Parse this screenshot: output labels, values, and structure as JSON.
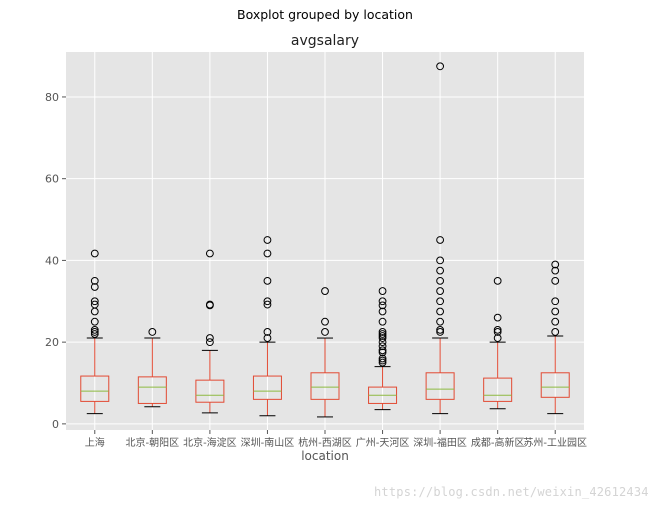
{
  "suptitle": "Boxplot grouped by location",
  "watermark": "https://blog.csdn.net/weixin_42612434",
  "chart_data": {
    "type": "box",
    "title": "avgsalary",
    "xlabel": "location",
    "ylabel": "",
    "ylim": [
      -1.5,
      91
    ],
    "yticks": [
      0,
      20,
      40,
      60,
      80
    ],
    "grid": true,
    "style": "ggplot",
    "colors": {
      "background": "#e5e5e5",
      "grid": "#ffffff",
      "box": "#e24a33",
      "median": "#8eba42",
      "text": "#555555"
    },
    "categories": [
      "上海",
      "北京-朝阳区",
      "北京-海淀区",
      "深圳-南山区",
      "杭州-西湖区",
      "广州-天河区",
      "深圳-福田区",
      "成都-高新区",
      "苏州-工业园区"
    ],
    "boxes": [
      {
        "whislo": 2.5,
        "q1": 5.5,
        "med": 8,
        "q3": 11.7,
        "whishi": 21,
        "fliers": [
          22,
          22.5,
          23,
          25,
          27.5,
          29.2,
          30,
          33.5,
          35,
          41.7
        ]
      },
      {
        "whislo": 4.2,
        "q1": 5,
        "med": 9,
        "q3": 11.5,
        "whishi": 21,
        "fliers": [
          22.5
        ]
      },
      {
        "whislo": 2.7,
        "q1": 5.3,
        "med": 7,
        "q3": 10.7,
        "whishi": 18,
        "fliers": [
          20,
          21,
          29,
          29.2,
          41.7
        ]
      },
      {
        "whislo": 2,
        "q1": 6,
        "med": 8,
        "q3": 11.7,
        "whishi": 20,
        "fliers": [
          21,
          22.5,
          29.2,
          30,
          35,
          41.7,
          45
        ]
      },
      {
        "whislo": 1.7,
        "q1": 6,
        "med": 9,
        "q3": 12.5,
        "whishi": 21,
        "fliers": [
          22.5,
          25,
          32.5
        ]
      },
      {
        "whislo": 3.5,
        "q1": 5,
        "med": 7,
        "q3": 9,
        "whishi": 14,
        "fliers": [
          15,
          15.5,
          16,
          17.5,
          18,
          19,
          20,
          21,
          21.5,
          22,
          22.5,
          25,
          27.5,
          29,
          30,
          32.5
        ]
      },
      {
        "whislo": 2.5,
        "q1": 6,
        "med": 8.5,
        "q3": 12.5,
        "whishi": 21,
        "fliers": [
          22.5,
          23,
          25,
          27.5,
          30,
          32.5,
          35,
          37.5,
          40,
          45,
          87.5
        ]
      },
      {
        "whislo": 3.7,
        "q1": 5.5,
        "med": 7,
        "q3": 11.2,
        "whishi": 20,
        "fliers": [
          21,
          22.5,
          23,
          26,
          35
        ]
      },
      {
        "whislo": 2.5,
        "q1": 6.5,
        "med": 9,
        "q3": 12.5,
        "whishi": 21.5,
        "fliers": [
          22.5,
          25,
          27.5,
          30,
          35,
          37.5,
          39
        ]
      }
    ]
  }
}
